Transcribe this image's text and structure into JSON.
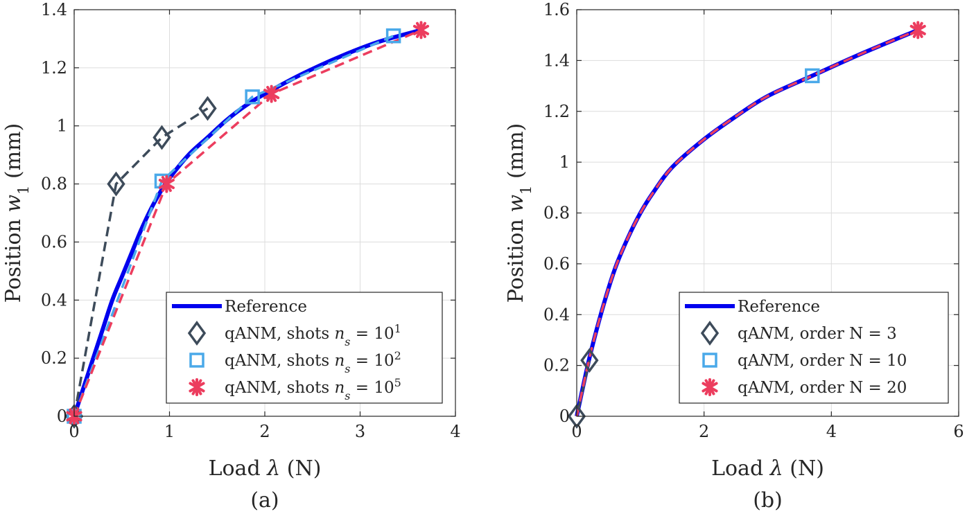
{
  "colors": {
    "reference": "#0000ee",
    "shots_1e1": "#3d4b5a",
    "shots_1e2": "#4aa9e9",
    "shots_1e5": "#ec3d5e",
    "grid": "#dcdcdc",
    "axis": "#262626"
  },
  "chart_data": [
    {
      "type": "line",
      "panel": "a",
      "caption": "(a)",
      "xlabel": "Load λ (N)",
      "ylabel": "Position w₁ (mm)",
      "xlim": [
        0,
        4
      ],
      "ylim": [
        0,
        1.4
      ],
      "xticks": [
        0,
        1,
        2,
        3,
        4
      ],
      "yticks": [
        0,
        0.2,
        0.4,
        0.6,
        0.8,
        1,
        1.2,
        1.4
      ],
      "xtick_labels": [
        "0",
        "1",
        "2",
        "3",
        "4"
      ],
      "ytick_labels": [
        "0",
        "0.2",
        "0.4",
        "0.6",
        "0.8",
        "1",
        "1.2",
        "1.4"
      ],
      "grid": true,
      "legend_position": "bottom-right",
      "series": [
        {
          "name": "Reference",
          "legend_label": "Reference",
          "style": "solid",
          "marker": "none",
          "color_key": "reference",
          "x": [
            0,
            0.1,
            0.2,
            0.3,
            0.4,
            0.5,
            0.6,
            0.7,
            0.8,
            0.9,
            1.0,
            1.2,
            1.4,
            1.6,
            1.8,
            2.0,
            2.4,
            2.8,
            3.2,
            3.64
          ],
          "y": [
            0,
            0.1,
            0.2,
            0.3,
            0.4,
            0.48,
            0.56,
            0.64,
            0.71,
            0.77,
            0.82,
            0.9,
            0.96,
            1.02,
            1.07,
            1.11,
            1.18,
            1.24,
            1.29,
            1.33
          ]
        },
        {
          "name": "qANM, shots n_s = 10^1",
          "legend_label": "qANM, shots n",
          "legend_sub": "s",
          "legend_eq": " = 10",
          "legend_sup": "1",
          "style": "dashed",
          "marker": "diamond",
          "color_key": "shots_1e1",
          "x": [
            0,
            0.44,
            0.92,
            1.4
          ],
          "y": [
            0,
            0.8,
            0.96,
            1.06
          ]
        },
        {
          "name": "qANM, shots n_s = 10^2",
          "legend_label": "qANM, shots n",
          "legend_sub": "s",
          "legend_eq": " = 10",
          "legend_sup": "2",
          "style": "dashed",
          "marker": "square",
          "color_key": "shots_1e2",
          "x": [
            0,
            0.92,
            1.87,
            3.35
          ],
          "y": [
            0,
            0.81,
            1.1,
            1.31
          ]
        },
        {
          "name": "qANM, shots n_s = 10^5",
          "legend_label": "qANM, shots n",
          "legend_sub": "s",
          "legend_eq": " = 10",
          "legend_sup": "5",
          "style": "dashed",
          "marker": "asterisk",
          "color_key": "shots_1e5",
          "x": [
            0,
            0.97,
            2.07,
            3.64
          ],
          "y": [
            0,
            0.8,
            1.11,
            1.33
          ]
        }
      ]
    },
    {
      "type": "line",
      "panel": "b",
      "caption": "(b)",
      "xlabel": "Load λ (N)",
      "ylabel": "Position w₁ (mm)",
      "xlim": [
        0,
        6
      ],
      "ylim": [
        0,
        1.6
      ],
      "xticks": [
        0,
        2,
        4,
        6
      ],
      "yticks": [
        0,
        0.2,
        0.4,
        0.6,
        0.8,
        1,
        1.2,
        1.4,
        1.6
      ],
      "xtick_labels": [
        "0",
        "2",
        "4",
        "6"
      ],
      "ytick_labels": [
        "0",
        "0.2",
        "0.4",
        "0.6",
        "0.8",
        "1",
        "1.2",
        "1.4",
        "1.6"
      ],
      "grid": true,
      "legend_position": "bottom-right",
      "series": [
        {
          "name": "Reference",
          "legend_label": "Reference",
          "style": "solid",
          "marker": "none",
          "color_key": "reference",
          "x": [
            0,
            0.2,
            0.4,
            0.6,
            0.8,
            1.0,
            1.2,
            1.5,
            2.0,
            2.5,
            3.0,
            3.7,
            4.5,
            5.36
          ],
          "y": [
            0,
            0.23,
            0.42,
            0.58,
            0.7,
            0.8,
            0.88,
            0.98,
            1.09,
            1.18,
            1.26,
            1.34,
            1.43,
            1.52
          ]
        },
        {
          "name": "qANM, order N = 3",
          "legend_label": "qANM, order N = 3",
          "style": "solid",
          "marker": "diamond",
          "color_key": "shots_1e1",
          "x": [
            0,
            0.2
          ],
          "y": [
            0,
            0.22
          ]
        },
        {
          "name": "qANM, order N = 10",
          "legend_label": "qANM, order N = 10",
          "style": "dashed",
          "marker": "square",
          "color_key": "shots_1e2",
          "x": [
            0,
            0.2,
            0.4,
            0.6,
            0.8,
            1.0,
            1.2,
            1.5,
            2.0,
            2.5,
            3.0,
            3.7
          ],
          "y": [
            0,
            0.23,
            0.42,
            0.58,
            0.7,
            0.8,
            0.88,
            0.98,
            1.09,
            1.18,
            1.26,
            1.34
          ],
          "marker_index": [
            11
          ]
        },
        {
          "name": "qANM, order N = 20",
          "legend_label": "qANM, order N = 20",
          "style": "dashed",
          "marker": "asterisk",
          "color_key": "shots_1e5",
          "x": [
            0,
            0.2,
            0.4,
            0.6,
            0.8,
            1.0,
            1.2,
            1.5,
            2.0,
            2.5,
            3.0,
            3.7,
            4.5,
            5.36
          ],
          "y": [
            0,
            0.23,
            0.42,
            0.58,
            0.7,
            0.8,
            0.88,
            0.98,
            1.09,
            1.18,
            1.26,
            1.34,
            1.43,
            1.52
          ],
          "marker_index": [
            13
          ]
        }
      ]
    }
  ]
}
